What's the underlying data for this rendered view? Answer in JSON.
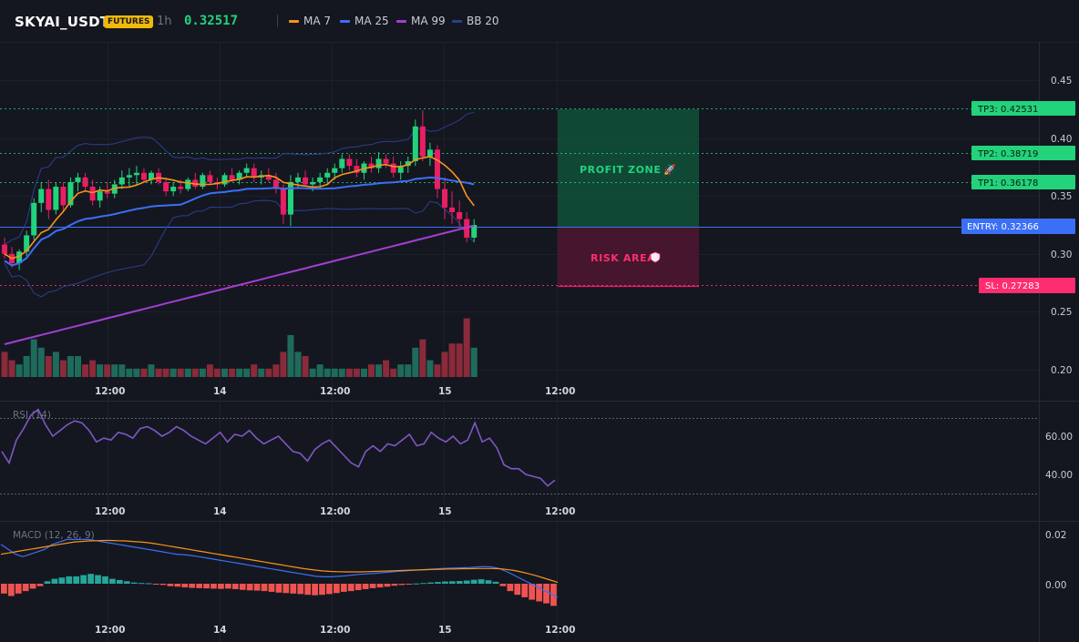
{
  "header": {
    "symbol": "SKYAI_USDT",
    "market_badge": "FUTURES",
    "interval": "1h",
    "last_price": "0.32517",
    "indicators": [
      {
        "name": "MA 7",
        "color": "#f7931a"
      },
      {
        "name": "MA 25",
        "color": "#3b6ff5"
      },
      {
        "name": "MA 99",
        "color": "#a33fd1"
      },
      {
        "name": "BB 20",
        "color": "#2b3f8f"
      }
    ]
  },
  "colors": {
    "bull": "#26a69a",
    "bull_body_bright": "#22d37b",
    "bear": "#e91e63",
    "vol_bull": "#1f6b5b",
    "vol_bear": "#8a2a3a",
    "macd_pos": "#26a69a",
    "macd_neg": "#ef5350",
    "rsi": "#7e57c2",
    "tp": "#22d37b",
    "entry": "#3b6ff5",
    "sl": "#ff2d6f"
  },
  "price_axis": {
    "ticks": [
      "0.45",
      "0.40",
      "0.35",
      "0.30",
      "0.25",
      "0.20"
    ]
  },
  "time_axis": {
    "ticks": [
      "12:00",
      "14",
      "12:00",
      "15",
      "12:00"
    ]
  },
  "levels": {
    "tp3": {
      "label": "TP3: 0.42531",
      "axis": "0.43"
    },
    "tp2": {
      "label": "TP2: 0.38719",
      "axis": "0.39"
    },
    "tp1": {
      "label": "TP1: 0.36178",
      "axis": "0.36"
    },
    "entry": {
      "label": "ENTRY: 0.32366",
      "axis": "0.32"
    },
    "sl": {
      "label": "SL: 0.27283",
      "axis": "0.27"
    }
  },
  "zones": {
    "profit": "PROFIT ZONE",
    "risk": "RISK AREA"
  },
  "rsi_panel": {
    "title": "RSI (14)",
    "ticks": [
      "60.00",
      "40.00"
    ],
    "values": [
      52,
      46,
      58,
      64,
      71,
      74,
      66,
      60,
      63,
      66,
      68,
      67,
      63,
      57,
      59,
      58,
      62,
      61,
      59,
      64,
      65,
      63,
      60,
      62,
      65,
      63,
      60,
      58,
      56,
      59,
      62,
      57,
      61,
      60,
      63,
      59,
      56,
      58,
      60,
      56,
      52,
      51,
      47,
      53,
      56,
      58,
      54,
      50,
      46,
      44,
      52,
      55,
      52,
      56,
      55,
      58,
      61,
      55,
      56,
      62,
      59,
      57,
      60,
      56,
      58,
      67,
      57,
      59,
      54,
      45,
      43,
      43,
      40,
      39,
      38,
      34,
      37
    ]
  },
  "macd_panel": {
    "title": "MACD (12, 26, 9)",
    "ticks": [
      "0.02",
      "0.00"
    ],
    "histogram": [
      -0.004,
      -0.005,
      -0.004,
      -0.003,
      -0.002,
      -0.001,
      0.001,
      0.002,
      0.0025,
      0.003,
      0.003,
      0.0035,
      0.004,
      0.0035,
      0.003,
      0.002,
      0.0015,
      0.001,
      0.0005,
      0.0003,
      0.0002,
      -0.0002,
      -0.0005,
      -0.001,
      -0.0012,
      -0.0015,
      -0.0017,
      -0.0018,
      -0.0019,
      -0.002,
      -0.0021,
      -0.002,
      -0.0022,
      -0.0025,
      -0.0027,
      -0.0028,
      -0.003,
      -0.0033,
      -0.0036,
      -0.0038,
      -0.004,
      -0.0042,
      -0.0045,
      -0.0047,
      -0.0045,
      -0.0042,
      -0.0038,
      -0.0033,
      -0.003,
      -0.0026,
      -0.0022,
      -0.0018,
      -0.0015,
      -0.0012,
      -0.0008,
      -0.0005,
      -0.0002,
      0.0001,
      0.0003,
      0.0005,
      0.0007,
      0.0009,
      0.001,
      0.0011,
      0.0013,
      0.0016,
      0.0018,
      0.0014,
      0.0008,
      -0.001,
      -0.003,
      -0.0045,
      -0.0055,
      -0.0065,
      -0.0072,
      -0.008,
      -0.009
    ],
    "macd_line": [
      0.016,
      0.014,
      0.012,
      0.011,
      0.012,
      0.013,
      0.014,
      0.016,
      0.017,
      0.018,
      0.018,
      0.018,
      0.018,
      0.0175,
      0.017,
      0.0165,
      0.016,
      0.0155,
      0.015,
      0.0145,
      0.014,
      0.0135,
      0.013,
      0.0125,
      0.012,
      0.0118,
      0.0115,
      0.011,
      0.0105,
      0.01,
      0.0095,
      0.009,
      0.0085,
      0.008,
      0.0075,
      0.007,
      0.0065,
      0.006,
      0.0055,
      0.005,
      0.0045,
      0.004,
      0.0035,
      0.003,
      0.0028,
      0.0028,
      0.003,
      0.0032,
      0.0035,
      0.0038,
      0.004,
      0.0042,
      0.0045,
      0.0047,
      0.005,
      0.0052,
      0.0054,
      0.0056,
      0.0058,
      0.006,
      0.0062,
      0.0063,
      0.0064,
      0.0065,
      0.0066,
      0.0068,
      0.007,
      0.0068,
      0.0062,
      0.005,
      0.0035,
      0.002,
      0.0005,
      -0.001,
      -0.0025,
      -0.004,
      -0.0055
    ],
    "signal_line": [
      0.012,
      0.0125,
      0.013,
      0.0135,
      0.014,
      0.0145,
      0.015,
      0.0155,
      0.016,
      0.0165,
      0.017,
      0.0172,
      0.0174,
      0.0175,
      0.0176,
      0.0176,
      0.0175,
      0.0174,
      0.0172,
      0.017,
      0.0167,
      0.0163,
      0.0158,
      0.0153,
      0.0148,
      0.0143,
      0.0138,
      0.0133,
      0.0128,
      0.0123,
      0.0118,
      0.0113,
      0.0108,
      0.0103,
      0.0098,
      0.0093,
      0.0088,
      0.0083,
      0.0078,
      0.0073,
      0.0068,
      0.0063,
      0.0059,
      0.0055,
      0.0052,
      0.005,
      0.0049,
      0.0048,
      0.0048,
      0.0048,
      0.0049,
      0.005,
      0.0051,
      0.0052,
      0.0053,
      0.0054,
      0.0055,
      0.0056,
      0.0057,
      0.0058,
      0.0059,
      0.006,
      0.006,
      0.0061,
      0.0061,
      0.0062,
      0.0062,
      0.0062,
      0.0061,
      0.0058,
      0.0054,
      0.0048,
      0.0041,
      0.0033,
      0.0024,
      0.0015,
      0.0005
    ]
  },
  "chart_data": {
    "type": "candlestick",
    "ohlc": [
      [
        0.308,
        0.314,
        0.296,
        0.3
      ],
      [
        0.3,
        0.306,
        0.288,
        0.292
      ],
      [
        0.292,
        0.304,
        0.286,
        0.302
      ],
      [
        0.302,
        0.32,
        0.298,
        0.316
      ],
      [
        0.316,
        0.348,
        0.312,
        0.344
      ],
      [
        0.344,
        0.362,
        0.336,
        0.356
      ],
      [
        0.356,
        0.364,
        0.33,
        0.338
      ],
      [
        0.338,
        0.362,
        0.334,
        0.358
      ],
      [
        0.358,
        0.362,
        0.336,
        0.342
      ],
      [
        0.342,
        0.366,
        0.34,
        0.362
      ],
      [
        0.362,
        0.37,
        0.354,
        0.366
      ],
      [
        0.366,
        0.37,
        0.354,
        0.358
      ],
      [
        0.358,
        0.364,
        0.342,
        0.346
      ],
      [
        0.346,
        0.358,
        0.34,
        0.354
      ],
      [
        0.354,
        0.362,
        0.348,
        0.352
      ],
      [
        0.352,
        0.364,
        0.348,
        0.36
      ],
      [
        0.36,
        0.372,
        0.356,
        0.366
      ],
      [
        0.366,
        0.374,
        0.358,
        0.368
      ],
      [
        0.368,
        0.376,
        0.36,
        0.37
      ],
      [
        0.37,
        0.374,
        0.362,
        0.364
      ],
      [
        0.364,
        0.372,
        0.36,
        0.37
      ],
      [
        0.37,
        0.374,
        0.36,
        0.362
      ],
      [
        0.362,
        0.366,
        0.35,
        0.354
      ],
      [
        0.354,
        0.362,
        0.35,
        0.358
      ],
      [
        0.358,
        0.364,
        0.352,
        0.356
      ],
      [
        0.356,
        0.366,
        0.354,
        0.364
      ],
      [
        0.364,
        0.37,
        0.356,
        0.358
      ],
      [
        0.358,
        0.37,
        0.356,
        0.368
      ],
      [
        0.368,
        0.372,
        0.36,
        0.362
      ],
      [
        0.362,
        0.366,
        0.356,
        0.36
      ],
      [
        0.36,
        0.37,
        0.358,
        0.368
      ],
      [
        0.368,
        0.374,
        0.362,
        0.364
      ],
      [
        0.364,
        0.372,
        0.36,
        0.37
      ],
      [
        0.37,
        0.378,
        0.366,
        0.374
      ],
      [
        0.374,
        0.378,
        0.362,
        0.366
      ],
      [
        0.366,
        0.372,
        0.36,
        0.368
      ],
      [
        0.368,
        0.374,
        0.362,
        0.364
      ],
      [
        0.364,
        0.37,
        0.352,
        0.356
      ],
      [
        0.356,
        0.36,
        0.326,
        0.334
      ],
      [
        0.334,
        0.368,
        0.324,
        0.362
      ],
      [
        0.362,
        0.37,
        0.356,
        0.366
      ],
      [
        0.366,
        0.372,
        0.358,
        0.36
      ],
      [
        0.36,
        0.366,
        0.354,
        0.362
      ],
      [
        0.362,
        0.37,
        0.356,
        0.366
      ],
      [
        0.366,
        0.374,
        0.36,
        0.37
      ],
      [
        0.37,
        0.378,
        0.364,
        0.374
      ],
      [
        0.374,
        0.386,
        0.37,
        0.382
      ],
      [
        0.382,
        0.386,
        0.372,
        0.376
      ],
      [
        0.376,
        0.382,
        0.366,
        0.37
      ],
      [
        0.37,
        0.38,
        0.364,
        0.378
      ],
      [
        0.378,
        0.384,
        0.37,
        0.374
      ],
      [
        0.374,
        0.388,
        0.37,
        0.382
      ],
      [
        0.382,
        0.386,
        0.374,
        0.378
      ],
      [
        0.378,
        0.384,
        0.366,
        0.37
      ],
      [
        0.37,
        0.38,
        0.364,
        0.376
      ],
      [
        0.376,
        0.384,
        0.37,
        0.38
      ],
      [
        0.38,
        0.416,
        0.376,
        0.41
      ],
      [
        0.41,
        0.424,
        0.38,
        0.384
      ],
      [
        0.384,
        0.396,
        0.376,
        0.39
      ],
      [
        0.39,
        0.394,
        0.348,
        0.356
      ],
      [
        0.356,
        0.366,
        0.33,
        0.34
      ],
      [
        0.34,
        0.354,
        0.326,
        0.336
      ],
      [
        0.336,
        0.346,
        0.322,
        0.33
      ],
      [
        0.33,
        0.336,
        0.31,
        0.314
      ],
      [
        0.314,
        0.33,
        0.31,
        0.325
      ]
    ],
    "volume": [
      0.6,
      0.4,
      0.3,
      0.5,
      0.9,
      0.7,
      0.5,
      0.6,
      0.4,
      0.5,
      0.5,
      0.3,
      0.4,
      0.3,
      0.3,
      0.3,
      0.3,
      0.2,
      0.2,
      0.2,
      0.3,
      0.2,
      0.2,
      0.2,
      0.2,
      0.2,
      0.2,
      0.2,
      0.3,
      0.2,
      0.2,
      0.2,
      0.2,
      0.2,
      0.3,
      0.2,
      0.2,
      0.3,
      0.6,
      1.0,
      0.6,
      0.5,
      0.2,
      0.3,
      0.2,
      0.2,
      0.2,
      0.2,
      0.2,
      0.2,
      0.3,
      0.3,
      0.4,
      0.2,
      0.3,
      0.3,
      0.7,
      0.9,
      0.4,
      0.3,
      0.6,
      0.8,
      0.8,
      1.4,
      0.7
    ]
  }
}
